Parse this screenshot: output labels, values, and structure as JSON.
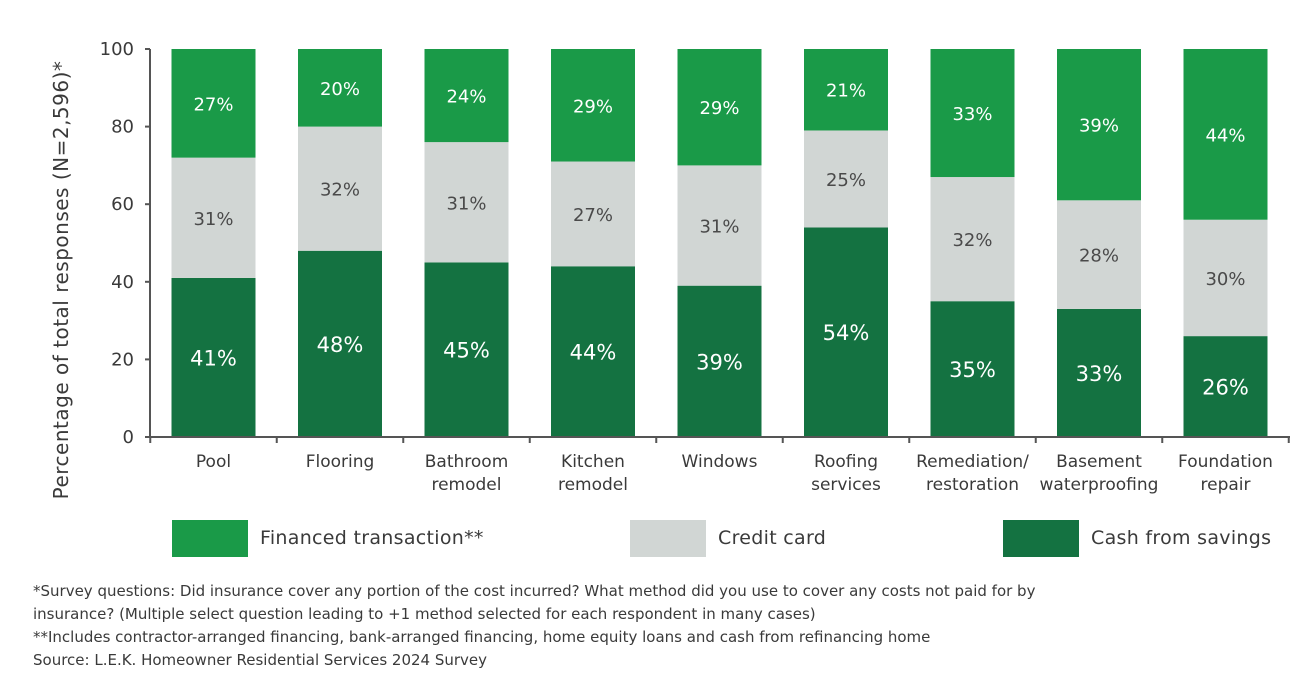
{
  "colors": {
    "financed": "#1a9a48",
    "credit": "#d1d6d4",
    "cash": "#147241",
    "axis": "#555555",
    "text_dark": "#3a3a3a",
    "label_light": "#ffffff",
    "label_grey": "#4a4a4a"
  },
  "chart_data": {
    "type": "bar",
    "stacked": true,
    "title": "",
    "xlabel": "",
    "ylabel": "Percentage of total responses (N=2,596)*",
    "ylim": [
      0,
      100
    ],
    "yticks": [
      "0",
      "20",
      "40",
      "60",
      "80",
      "100"
    ],
    "grid": false,
    "legend_position": "bottom",
    "categories": [
      [
        "Pool"
      ],
      [
        "Flooring"
      ],
      [
        "Bathroom",
        "remodel"
      ],
      [
        "Kitchen",
        "remodel"
      ],
      [
        "Windows"
      ],
      [
        "Roofing",
        "services"
      ],
      [
        "Remediation/",
        "restoration"
      ],
      [
        "Basement",
        "waterproofing"
      ],
      [
        "Foundation",
        "repair"
      ]
    ],
    "series": [
      {
        "name": "Cash from savings",
        "key": "cash",
        "values": [
          41,
          48,
          45,
          44,
          39,
          54,
          35,
          33,
          26
        ]
      },
      {
        "name": "Credit card",
        "key": "credit",
        "values": [
          31,
          32,
          31,
          27,
          31,
          25,
          32,
          28,
          30
        ]
      },
      {
        "name": "Financed transaction**",
        "key": "financed",
        "values": [
          27,
          20,
          24,
          29,
          29,
          21,
          33,
          39,
          44
        ]
      }
    ]
  },
  "legend": {
    "financed": "Financed transaction**",
    "credit": "Credit card",
    "cash": "Cash from savings"
  },
  "footnotes": {
    "line1": "*Survey questions: Did insurance cover any portion of the cost incurred? What method did you use to cover any costs not paid for by",
    "line2": "insurance? (Multiple select question leading to +1 method selected for each respondent in many cases)",
    "line3": "**Includes contractor-arranged financing, bank-arranged financing, home equity loans and cash from refinancing home",
    "line4": "Source: L.E.K. Homeowner Residential Services 2024 Survey"
  }
}
